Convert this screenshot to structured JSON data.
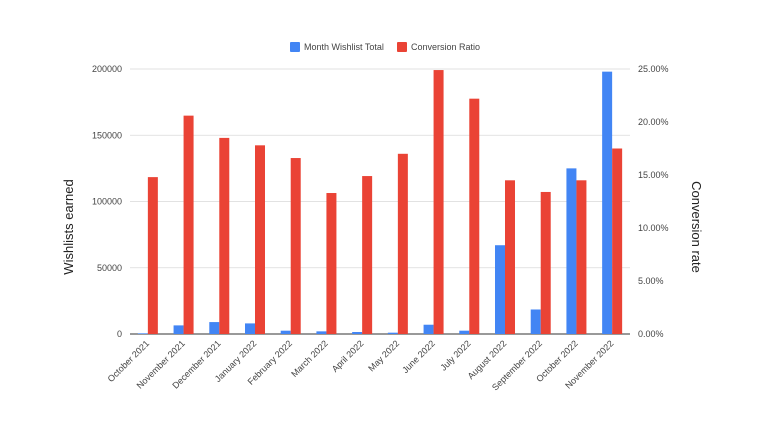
{
  "chart_data": {
    "type": "bar",
    "categories": [
      "October 2021",
      "November 2021",
      "December 2021",
      "January 2022",
      "February 2022",
      "March 2022",
      "April 2022",
      "May 2022",
      "June 2022",
      "July 2022",
      "August 2022",
      "September 2022",
      "October 2022",
      "November 2022"
    ],
    "series": [
      {
        "name": "Month Wishlist Total",
        "axis": "left",
        "color": "#4285f4",
        "values": [
          500,
          6500,
          9000,
          8000,
          2500,
          2000,
          1500,
          1000,
          7000,
          2500,
          67000,
          18500,
          125000,
          198000
        ]
      },
      {
        "name": "Conversion Ratio",
        "axis": "right",
        "color": "#ea4335",
        "values": [
          0.148,
          0.206,
          0.185,
          0.178,
          0.166,
          0.133,
          0.149,
          0.17,
          0.249,
          0.222,
          0.145,
          0.134,
          0.145,
          0.175
        ]
      }
    ],
    "ylabel": "Wishlists earned",
    "y2label": "Conversion rate",
    "ylim": [
      0,
      200000
    ],
    "y2lim": [
      0,
      0.25
    ],
    "yticks": [
      "0",
      "50000",
      "100000",
      "150000",
      "200000"
    ],
    "y2ticks": [
      "0.00%",
      "5.00%",
      "10.00%",
      "15.00%",
      "20.00%",
      "25.00%"
    ],
    "grid": true,
    "legend_position": "top-center"
  }
}
